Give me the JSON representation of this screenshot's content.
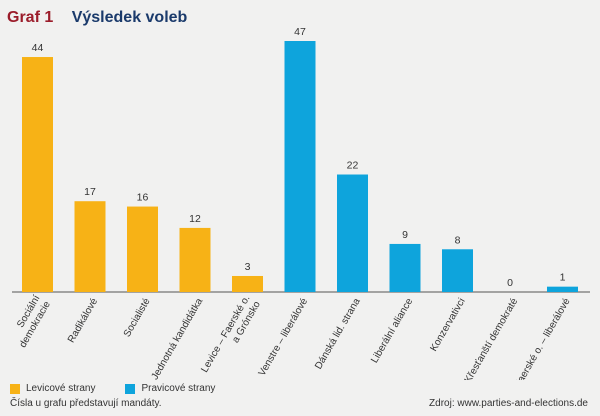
{
  "header": {
    "number": "Graf 1",
    "title": "Výsledek voleb"
  },
  "colors": {
    "left": "#f7b216",
    "right": "#0ea4dc",
    "axis": "#555555"
  },
  "chart_data": {
    "type": "bar",
    "title": "Výsledek voleb",
    "categories": [
      "Sociální demokracie",
      "Radikálové",
      "Socialisté",
      "Jednotná kandidátka",
      "Levice – Faerské o. a Grónsko",
      "Venstre – liberálové",
      "Dánská lid. strana",
      "Liberální aliance",
      "Konzervativci",
      "Křesťanští demokraté",
      "Faerské o. – liberálové"
    ],
    "label_lines": [
      [
        "Sociální",
        "demokracie"
      ],
      [
        "Radikálové"
      ],
      [
        "Socialisté"
      ],
      [
        "Jednotná kandidátka"
      ],
      [
        "Levice – Faerské o.",
        "a Grónsko"
      ],
      [
        "Venstre – liberálové"
      ],
      [
        "Dánská lid. strana"
      ],
      [
        "Liberální aliance"
      ],
      [
        "Konzervativci"
      ],
      [
        "Křesťanští demokraté"
      ],
      [
        "Faerské o. – liberálové"
      ]
    ],
    "values": [
      44,
      17,
      16,
      12,
      3,
      47,
      22,
      9,
      8,
      0,
      1
    ],
    "groups": [
      "left",
      "left",
      "left",
      "left",
      "left",
      "right",
      "right",
      "right",
      "right",
      "right",
      "right"
    ],
    "ylim": [
      0,
      47
    ],
    "grid": false,
    "legend": [
      {
        "key": "left",
        "label": "Levicové strany"
      },
      {
        "key": "right",
        "label": "Pravicové strany"
      }
    ],
    "legend_position": "bottom-left"
  },
  "footer": {
    "note": "Čísla u grafu představují mandáty.",
    "source": "Zdroj: www.parties-and-elections.de"
  }
}
